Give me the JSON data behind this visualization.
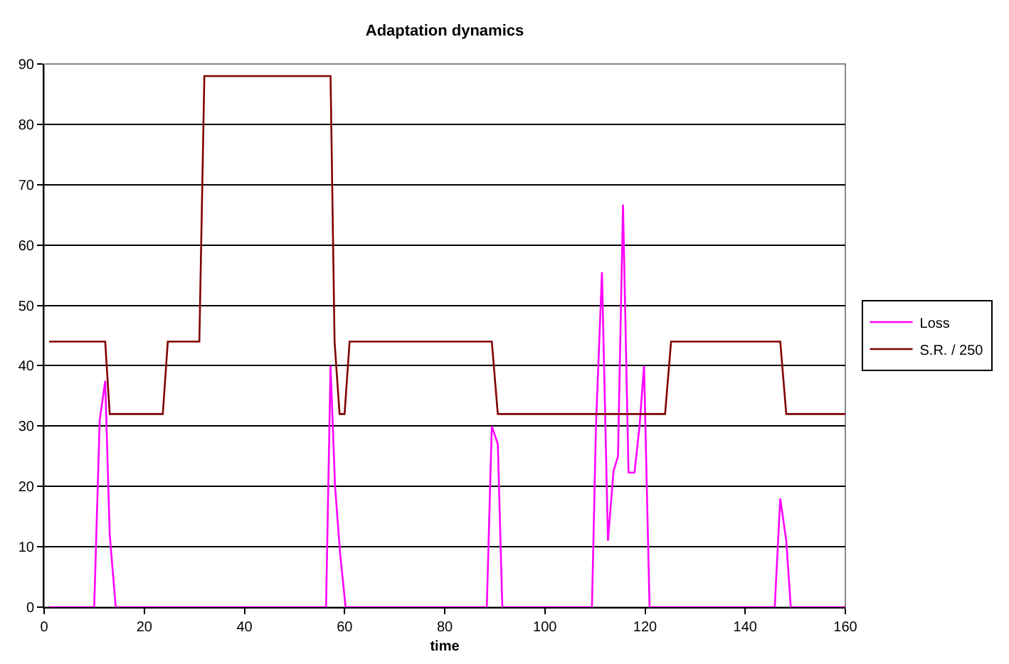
{
  "chart_data": {
    "type": "line",
    "title": "Adaptation dynamics",
    "xlabel": "time",
    "xlim": [
      0,
      160
    ],
    "xticks": [
      0,
      20,
      40,
      60,
      80,
      100,
      120,
      140,
      160
    ],
    "ylim": [
      0,
      90
    ],
    "yticks": [
      0,
      10,
      20,
      30,
      40,
      50,
      60,
      70,
      80,
      90
    ],
    "grid": "y",
    "legend": "right",
    "marker": "none",
    "line_style": "solid",
    "series": [
      {
        "name": "Loss",
        "color": "#ff00ff",
        "x": [
          1,
          10,
          11.1,
          12.2,
          13.1,
          14.3,
          56.3,
          57.2,
          58.1,
          59.1,
          60.2,
          88.4,
          89.4,
          90.6,
          91.5,
          109.4,
          110.2,
          111.4,
          112.6,
          113.7,
          114.6,
          115.6,
          116.7,
          117.9,
          118.9,
          119.8,
          120.9,
          145.9,
          147,
          148.2,
          149.1,
          160
        ],
        "values": [
          0,
          0,
          31,
          37.5,
          12,
          0,
          0,
          40,
          20,
          9,
          0,
          0,
          30,
          27,
          0,
          0,
          30,
          55.5,
          11,
          22.5,
          25,
          66.7,
          22.3,
          22.3,
          30,
          40,
          0,
          0,
          18,
          11,
          0,
          0
        ]
      },
      {
        "name": "S.R. / 250",
        "color": "#800000",
        "x": [
          1,
          12.2,
          13.1,
          23.7,
          24.7,
          31,
          32,
          57.2,
          58,
          59,
          60,
          61,
          89.4,
          90.6,
          124,
          125.2,
          147,
          148.2,
          160
        ],
        "values": [
          44,
          44,
          32,
          32,
          44,
          44,
          88,
          88,
          44,
          32,
          32,
          44,
          44,
          32,
          32,
          44,
          44,
          32,
          32
        ]
      }
    ]
  }
}
